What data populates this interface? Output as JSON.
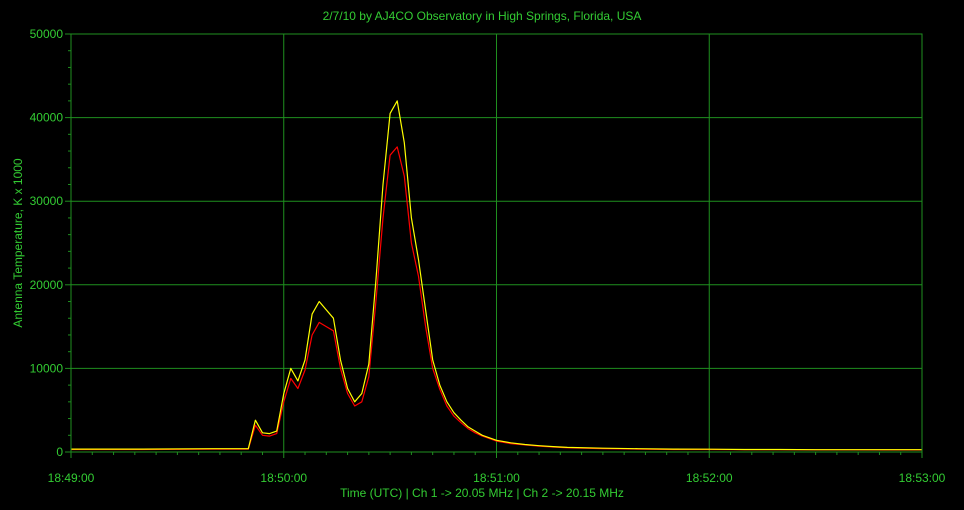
{
  "chart_data": {
    "type": "line",
    "title": "2/7/10  by  AJ4CO Observatory  in  High Springs, Florida, USA",
    "xlabel": "Time (UTC)  |  Ch 1 -> 20.05 MHz  |  Ch 2 -> 20.15 MHz",
    "ylabel": "Antenna Temperature, K x 1000",
    "x_ticks": [
      "18:49:00",
      "18:50:00",
      "18:51:00",
      "18:52:00",
      "18:53:00"
    ],
    "y_ticks": [
      0,
      10000,
      20000,
      30000,
      40000,
      50000
    ],
    "xlim_seconds_from_start": [
      0,
      240
    ],
    "ylim": [
      0,
      50000
    ],
    "grid": true,
    "colors": {
      "background": "#000000",
      "grid": "#1f8f1f",
      "text": "#33cc33",
      "ch1": "#ff0000",
      "ch2": "#ffff00"
    },
    "series": [
      {
        "color": "#ff0000",
        "x": [
          0,
          20,
          40,
          50,
          52,
          54,
          56,
          58,
          60,
          62,
          64,
          66,
          68,
          70,
          72,
          74,
          76,
          78,
          80,
          82,
          84,
          86,
          88,
          90,
          92,
          94,
          96,
          98,
          100,
          102,
          104,
          106,
          108,
          110,
          112,
          114,
          116,
          118,
          120,
          124,
          128,
          132,
          136,
          140,
          150,
          160,
          170,
          180,
          190,
          200,
          210,
          220,
          230,
          240
        ],
        "values": [
          300,
          300,
          350,
          350,
          3200,
          2000,
          1900,
          2200,
          6000,
          8800,
          7600,
          9800,
          14000,
          15500,
          15000,
          14500,
          10000,
          7000,
          5500,
          6000,
          9000,
          18000,
          28000,
          35500,
          36500,
          33000,
          25000,
          21000,
          15000,
          10000,
          7500,
          5500,
          4300,
          3500,
          2800,
          2300,
          1900,
          1600,
          1300,
          1000,
          850,
          700,
          600,
          500,
          400,
          350,
          300,
          300,
          280,
          280,
          260,
          260,
          250,
          250
        ]
      },
      {
        "color": "#ffff00",
        "x": [
          0,
          20,
          40,
          50,
          52,
          54,
          56,
          58,
          60,
          62,
          64,
          66,
          68,
          70,
          72,
          74,
          76,
          78,
          80,
          82,
          84,
          86,
          88,
          90,
          92,
          94,
          96,
          98,
          100,
          102,
          104,
          106,
          108,
          110,
          112,
          114,
          116,
          118,
          120,
          124,
          128,
          132,
          136,
          140,
          150,
          160,
          170,
          180,
          190,
          200,
          210,
          220,
          230,
          240
        ],
        "values": [
          350,
          350,
          400,
          400,
          3800,
          2300,
          2200,
          2500,
          7000,
          10000,
          8500,
          11000,
          16500,
          18000,
          17000,
          16000,
          11000,
          7600,
          6000,
          7000,
          10500,
          20500,
          32000,
          40500,
          42000,
          37000,
          28000,
          23000,
          17000,
          11000,
          8000,
          6000,
          4700,
          3800,
          3000,
          2500,
          2000,
          1700,
          1400,
          1100,
          900,
          750,
          650,
          550,
          450,
          400,
          350,
          330,
          300,
          300,
          280,
          280,
          270,
          270
        ]
      }
    ]
  }
}
